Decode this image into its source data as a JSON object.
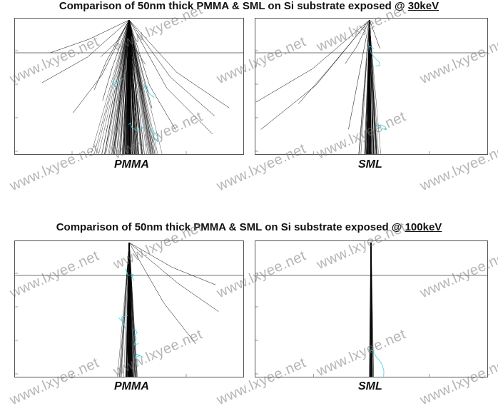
{
  "top": {
    "title_prefix": "Comparison of 50nm thick PMMA & SML on Si substrate exposed @ ",
    "title_energy": "30keV",
    "left_label": "PMMA",
    "right_label": "SML"
  },
  "bottom": {
    "title_prefix": "Comparison of 50nm thick PMMA & SML on Si substrate exposed @ ",
    "title_energy": "100keV",
    "left_label": "PMMA",
    "right_label": "SML"
  },
  "watermark": "www.lxyee.net",
  "colors": {
    "trajectory": "#000000",
    "secondary": "#40d0e0",
    "frame": "#555555"
  }
}
